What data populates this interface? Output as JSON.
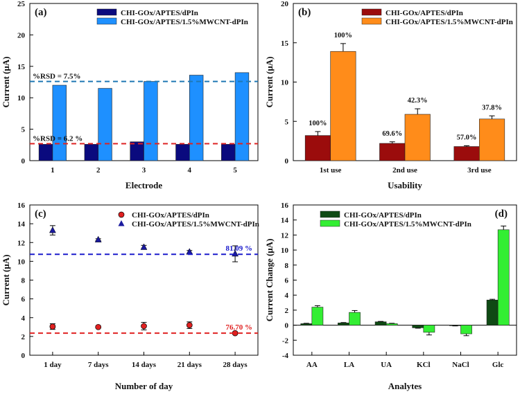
{
  "figure": {
    "description_panels": [
      "a",
      "b",
      "c",
      "d"
    ]
  },
  "chart_data": [
    {
      "panel": "(a)",
      "type": "bar",
      "xlabel": "Electrode",
      "ylabel": "Current (μA)",
      "ylim": [
        0,
        25
      ],
      "yticks": [
        0,
        5,
        10,
        15,
        20,
        25
      ],
      "categories": [
        "1",
        "2",
        "3",
        "4",
        "5"
      ],
      "series": [
        {
          "name": "CHI-GOx/APTES/dPIn",
          "color": "#0a0a7e",
          "values": [
            2.6,
            2.6,
            3.0,
            2.6,
            2.6
          ]
        },
        {
          "name": "CHI-GOx/APTES/1.5%MWCNT-dPIn",
          "color": "#1e90ff",
          "values": [
            12.0,
            11.5,
            12.6,
            13.6,
            14.0
          ]
        }
      ],
      "reference_lines": [
        {
          "value": 12.6,
          "color": "#1f78b4",
          "label": "%RSD = 7.5%"
        },
        {
          "value": 2.7,
          "color": "#dd2222",
          "label": "%RSD = 6.2 %"
        }
      ],
      "legend": "top-center"
    },
    {
      "panel": "(b)",
      "type": "bar",
      "xlabel": "Usability",
      "ylabel": "Current (μA)",
      "ylim": [
        0,
        20
      ],
      "yticks": [
        0,
        5,
        10,
        15,
        20
      ],
      "categories": [
        "1st use",
        "2nd use",
        "3rd use"
      ],
      "series": [
        {
          "name": "CHI-GOx/APTES/dPIn",
          "color": "#9b0c0c",
          "values": [
            3.2,
            2.2,
            1.8
          ],
          "errors": [
            0.5,
            0.2,
            0.1
          ],
          "labels": [
            "100%",
            "69.6%",
            "57.0%"
          ]
        },
        {
          "name": "CHI-GOx/APTES/1.5%MWCNT-dPIn",
          "color": "#ff8c1a",
          "values": [
            13.9,
            5.9,
            5.3
          ],
          "errors": [
            1.0,
            0.7,
            0.4
          ],
          "labels": [
            "100%",
            "42.3%",
            "37.8%"
          ]
        }
      ],
      "legend": "top-center"
    },
    {
      "panel": "(c)",
      "type": "scatter",
      "xlabel": "Number of day",
      "ylabel": "Current (μA)",
      "ylim": [
        0,
        16
      ],
      "yticks": [
        0,
        2,
        4,
        6,
        8,
        10,
        12,
        14,
        16
      ],
      "categories": [
        "1 day",
        "7 days",
        "14 days",
        "21 days",
        "28 days"
      ],
      "series": [
        {
          "name": "CHI-GOx/APTES/dPIn",
          "color": "#e02020",
          "marker": "circle",
          "values": [
            3.05,
            3.0,
            3.1,
            3.2,
            2.35
          ],
          "errors": [
            0.3,
            0.1,
            0.4,
            0.35,
            0.05
          ]
        },
        {
          "name": "CHI-GOx/APTES/1.5%MWCNT-dPIn",
          "color": "#1a1a9e",
          "marker": "triangle",
          "values": [
            13.3,
            12.3,
            11.5,
            11.0,
            10.8
          ],
          "errors": [
            0.5,
            0.1,
            0.2,
            0.15,
            0.85
          ]
        }
      ],
      "reference_lines": [
        {
          "value": 10.75,
          "color": "#1a1acc",
          "label": "81.09 %"
        },
        {
          "value": 2.35,
          "color": "#e02020",
          "label": "76.70 %"
        }
      ],
      "legend": "top-center"
    },
    {
      "panel": "(d)",
      "type": "bar",
      "xlabel": "Analytes",
      "ylabel": "Current Change (μA)",
      "ylim": [
        -4,
        16
      ],
      "yticks": [
        -4,
        -2,
        0,
        2,
        4,
        6,
        8,
        10,
        12,
        14,
        16
      ],
      "categories": [
        "AA",
        "LA",
        "UA",
        "KCl",
        "NaCl",
        "Glc"
      ],
      "series": [
        {
          "name": "CHI-GOx/APTES/dPIn",
          "color": "#0f4a14",
          "values": [
            0.2,
            0.3,
            0.45,
            -0.35,
            -0.05,
            3.35
          ],
          "errors": [
            0.05,
            0.05,
            0.05,
            0.05,
            0.05,
            0.1
          ]
        },
        {
          "name": "CHI-GOx/APTES/1.5%MWCNT-dPIn",
          "color": "#33ee33",
          "values": [
            2.4,
            1.7,
            0.2,
            -0.95,
            -1.15,
            12.7
          ],
          "errors": [
            0.2,
            0.25,
            0.05,
            0.35,
            0.25,
            0.5
          ]
        }
      ],
      "legend": "top-left"
    }
  ]
}
